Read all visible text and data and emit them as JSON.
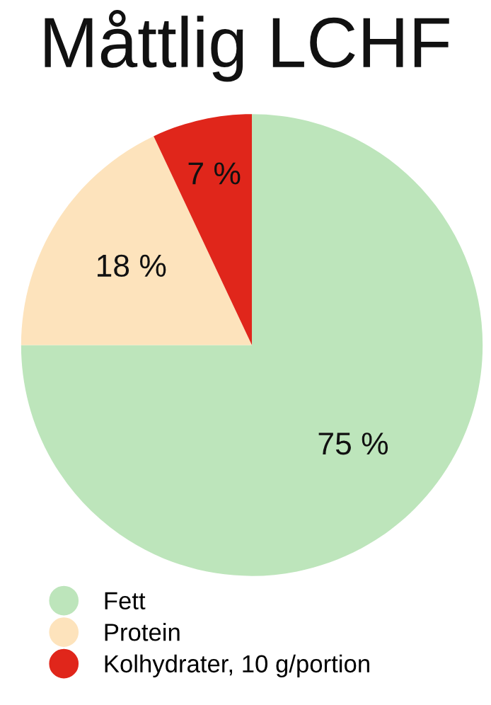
{
  "chart_data": {
    "type": "pie",
    "title": "Måttlig LCHF",
    "categories": [
      "Fett",
      "Protein",
      "Kolhydrater, 10 g/portion"
    ],
    "values": [
      75,
      18,
      7
    ],
    "colors": [
      "#bde5bb",
      "#fde3bc",
      "#e0261b"
    ],
    "value_labels": [
      "75 %",
      "18 %",
      "7 %"
    ],
    "legend": "bottom left"
  }
}
